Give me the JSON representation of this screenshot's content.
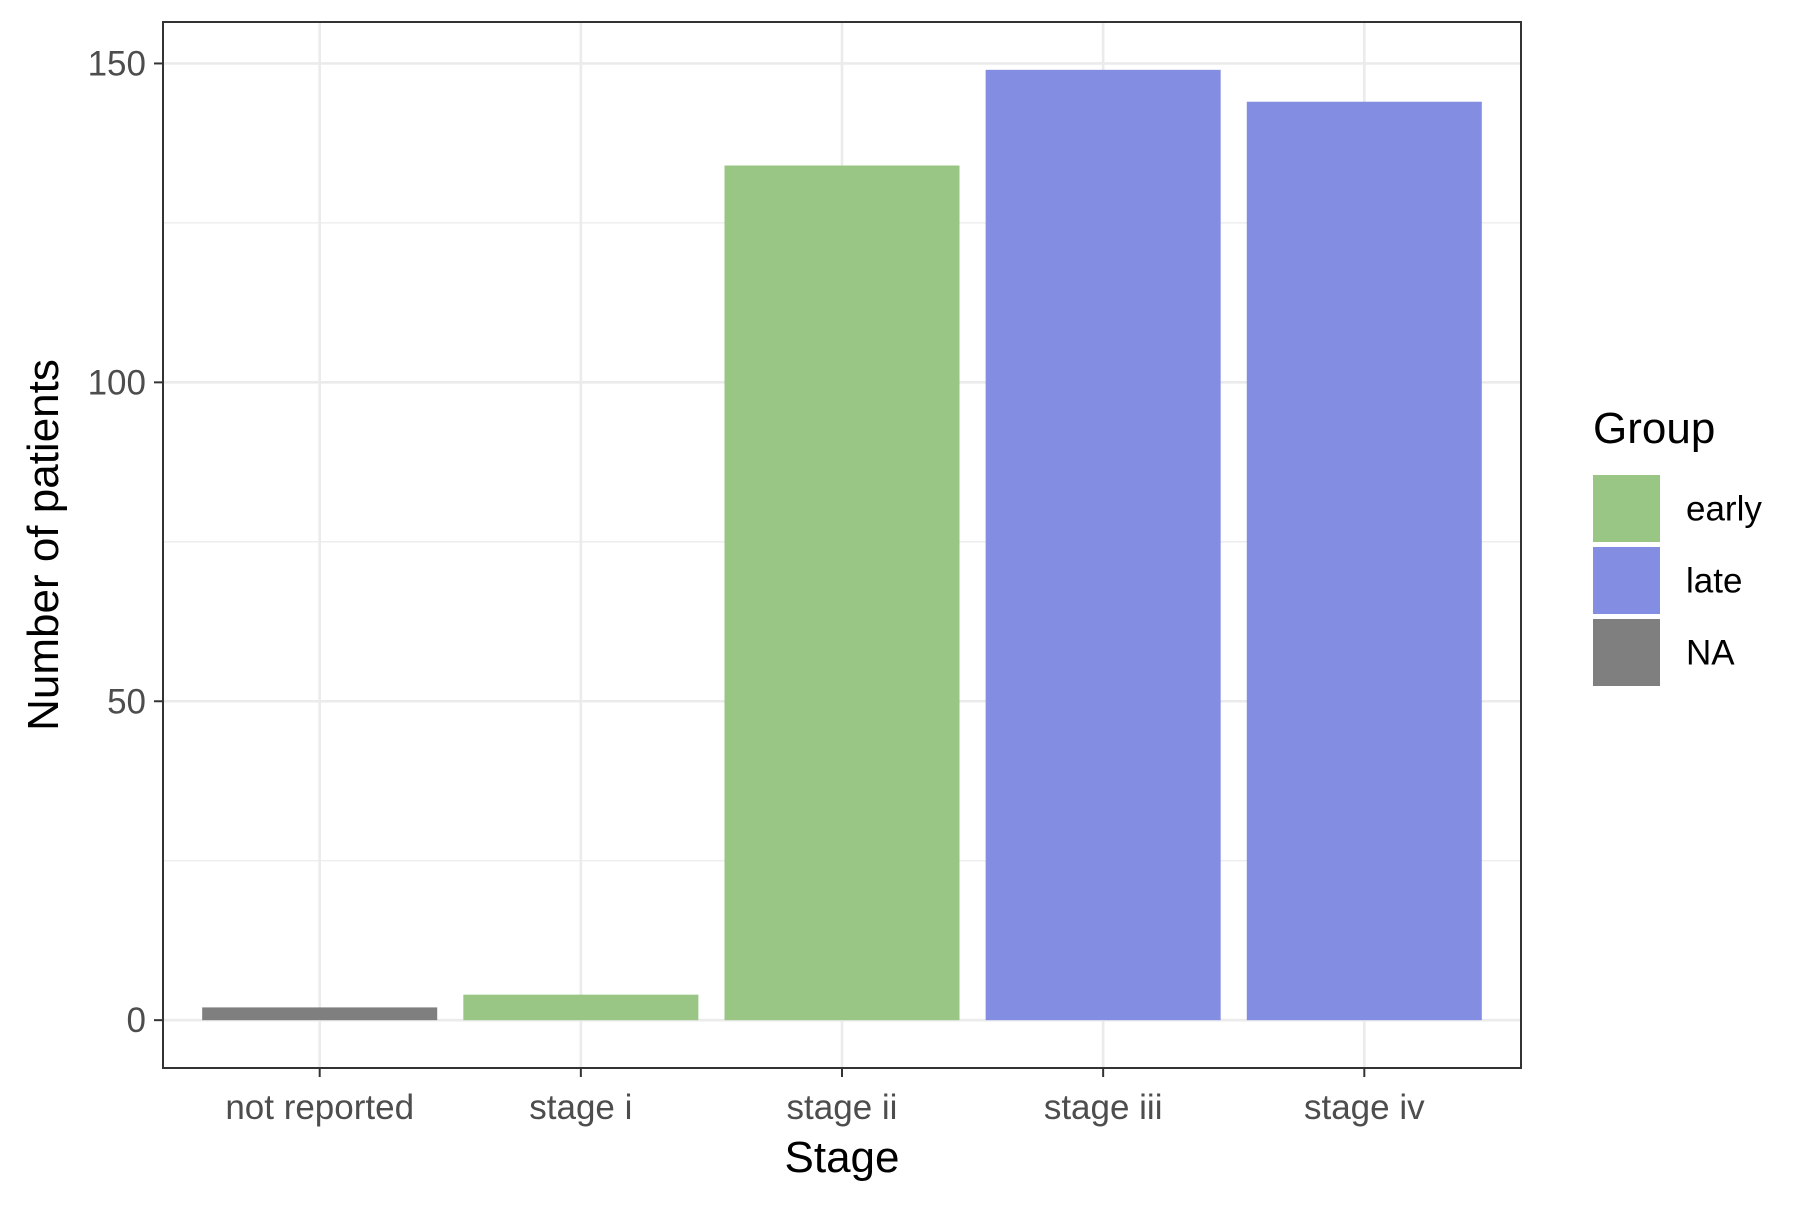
{
  "chart_data": {
    "type": "bar",
    "categories": [
      "not reported",
      "stage i",
      "stage ii",
      "stage iii",
      "stage iv"
    ],
    "values": [
      2,
      4,
      134,
      149,
      144
    ],
    "groups": [
      "NA",
      "early",
      "early",
      "late",
      "late"
    ],
    "title": "",
    "xlabel": "Stage",
    "ylabel": "Number of patients",
    "ylim": [
      -7.5,
      156.5
    ],
    "yticks": [
      0,
      50,
      100,
      150
    ],
    "ytick_labels": [
      "0",
      "50",
      "100",
      "150"
    ],
    "y_minor_ticks": [
      25,
      75,
      125
    ],
    "grid": true,
    "legend": {
      "title": "Group",
      "position": "right",
      "entries": [
        {
          "label": "early",
          "color": "#99c685"
        },
        {
          "label": "late",
          "color": "#838ee2"
        },
        {
          "label": "NA",
          "color": "#7f7f7f"
        }
      ]
    },
    "colors": {
      "early": "#99c685",
      "late": "#838ee2",
      "NA": "#7f7f7f",
      "grid": "#ebebeb",
      "panel_border": "#333333",
      "tick_text": "#4d4d4d"
    }
  }
}
